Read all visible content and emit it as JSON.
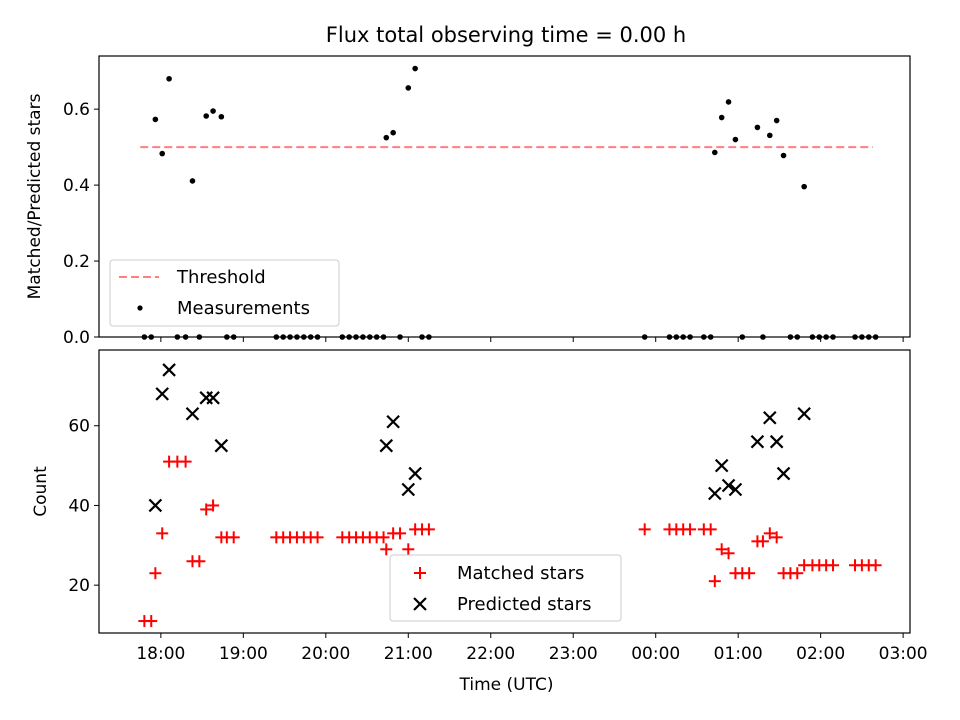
{
  "figure": {
    "title": "Flux total observing time = 0.00 h"
  },
  "chart_data": [
    {
      "type": "scatter",
      "panel": "top",
      "ylabel": "Matched/Predicted stars",
      "xlabel": "",
      "ylim": [
        0.0,
        0.74
      ],
      "y_ticks": [
        0.0,
        0.2,
        0.4,
        0.6
      ],
      "y_tick_labels": [
        "0.0",
        "0.2",
        "0.4",
        "0.6"
      ],
      "legend_position": "lower-left",
      "threshold": {
        "name": "Threshold",
        "value": 0.5,
        "color": "#ff7f7f",
        "x_start": "17:45",
        "x_end": "02:38"
      },
      "series": [
        {
          "name": "Measurements",
          "color": "#000000",
          "marker": "dot",
          "points": [
            [
              "17:48",
              0.0
            ],
            [
              "17:53",
              0.0
            ],
            [
              "17:56",
              0.573
            ],
            [
              "18:01",
              0.483
            ],
            [
              "18:06",
              0.68
            ],
            [
              "18:12",
              0.0
            ],
            [
              "18:18",
              0.0
            ],
            [
              "18:23",
              0.411
            ],
            [
              "18:28",
              0.0
            ],
            [
              "18:33",
              0.582
            ],
            [
              "18:38",
              0.595
            ],
            [
              "18:44",
              0.58
            ],
            [
              "18:48",
              0.0
            ],
            [
              "18:53",
              0.0
            ],
            [
              "19:24",
              0.0
            ],
            [
              "19:29",
              0.0
            ],
            [
              "19:34",
              0.0
            ],
            [
              "19:39",
              0.0
            ],
            [
              "19:44",
              0.0
            ],
            [
              "19:49",
              0.0
            ],
            [
              "19:54",
              0.0
            ],
            [
              "20:12",
              0.0
            ],
            [
              "20:17",
              0.0
            ],
            [
              "20:22",
              0.0
            ],
            [
              "20:27",
              0.0
            ],
            [
              "20:32",
              0.0
            ],
            [
              "20:37",
              0.0
            ],
            [
              "20:42",
              0.0
            ],
            [
              "20:44",
              0.525
            ],
            [
              "20:49",
              0.538
            ],
            [
              "20:54",
              0.0
            ],
            [
              "21:00",
              0.656
            ],
            [
              "21:05",
              0.707
            ],
            [
              "21:10",
              0.0
            ],
            [
              "21:15",
              0.0
            ],
            [
              "23:52",
              0.0
            ],
            [
              "00:10",
              0.0
            ],
            [
              "00:15",
              0.0
            ],
            [
              "00:20",
              0.0
            ],
            [
              "00:25",
              0.0
            ],
            [
              "00:35",
              0.0
            ],
            [
              "00:40",
              0.0
            ],
            [
              "00:43",
              0.486
            ],
            [
              "00:48",
              0.578
            ],
            [
              "00:53",
              0.619
            ],
            [
              "00:58",
              0.52
            ],
            [
              "01:03",
              0.0
            ],
            [
              "01:14",
              0.552
            ],
            [
              "01:18",
              0.0
            ],
            [
              "01:23",
              0.531
            ],
            [
              "01:28",
              0.57
            ],
            [
              "01:33",
              0.478
            ],
            [
              "01:38",
              0.0
            ],
            [
              "01:43",
              0.0
            ],
            [
              "01:48",
              0.396
            ],
            [
              "01:54",
              0.0
            ],
            [
              "01:59",
              0.0
            ],
            [
              "02:04",
              0.0
            ],
            [
              "02:09",
              0.0
            ],
            [
              "02:25",
              0.0
            ],
            [
              "02:30",
              0.0
            ],
            [
              "02:35",
              0.0
            ],
            [
              "02:40",
              0.0
            ]
          ]
        }
      ]
    },
    {
      "type": "scatter",
      "panel": "bottom",
      "ylabel": "Count",
      "xlabel": "Time (UTC)",
      "ylim": [
        8,
        79
      ],
      "y_ticks": [
        20,
        40,
        60
      ],
      "y_tick_labels": [
        "20",
        "40",
        "60"
      ],
      "x_range": [
        "17:15",
        "03:05"
      ],
      "x_ticks": [
        "18:00",
        "19:00",
        "20:00",
        "21:00",
        "22:00",
        "23:00",
        "00:00",
        "01:00",
        "02:00",
        "03:00"
      ],
      "legend_position": "lower-center",
      "series": [
        {
          "name": "Matched stars",
          "color": "#ff0000",
          "marker": "plus",
          "points": [
            [
              "17:48",
              11
            ],
            [
              "17:53",
              11
            ],
            [
              "17:56",
              23
            ],
            [
              "18:01",
              33
            ],
            [
              "18:06",
              51
            ],
            [
              "18:12",
              51
            ],
            [
              "18:18",
              51
            ],
            [
              "18:23",
              26
            ],
            [
              "18:28",
              26
            ],
            [
              "18:33",
              39
            ],
            [
              "18:38",
              40
            ],
            [
              "18:44",
              32
            ],
            [
              "18:48",
              32
            ],
            [
              "18:53",
              32
            ],
            [
              "19:24",
              32
            ],
            [
              "19:29",
              32
            ],
            [
              "19:34",
              32
            ],
            [
              "19:39",
              32
            ],
            [
              "19:44",
              32
            ],
            [
              "19:49",
              32
            ],
            [
              "19:54",
              32
            ],
            [
              "20:12",
              32
            ],
            [
              "20:17",
              32
            ],
            [
              "20:22",
              32
            ],
            [
              "20:27",
              32
            ],
            [
              "20:32",
              32
            ],
            [
              "20:37",
              32
            ],
            [
              "20:42",
              32
            ],
            [
              "20:44",
              29
            ],
            [
              "20:49",
              33
            ],
            [
              "20:54",
              33
            ],
            [
              "21:00",
              29
            ],
            [
              "21:05",
              34
            ],
            [
              "21:10",
              34
            ],
            [
              "21:15",
              34
            ],
            [
              "23:52",
              34
            ],
            [
              "00:10",
              34
            ],
            [
              "00:15",
              34
            ],
            [
              "00:20",
              34
            ],
            [
              "00:25",
              34
            ],
            [
              "00:35",
              34
            ],
            [
              "00:40",
              34
            ],
            [
              "00:43",
              21
            ],
            [
              "00:48",
              29
            ],
            [
              "00:53",
              28
            ],
            [
              "00:58",
              23
            ],
            [
              "01:03",
              23
            ],
            [
              "01:08",
              23
            ],
            [
              "01:14",
              31
            ],
            [
              "01:18",
              31
            ],
            [
              "01:23",
              33
            ],
            [
              "01:28",
              32
            ],
            [
              "01:33",
              23
            ],
            [
              "01:38",
              23
            ],
            [
              "01:43",
              23
            ],
            [
              "01:48",
              25
            ],
            [
              "01:54",
              25
            ],
            [
              "01:59",
              25
            ],
            [
              "02:04",
              25
            ],
            [
              "02:09",
              25
            ],
            [
              "02:25",
              25
            ],
            [
              "02:30",
              25
            ],
            [
              "02:35",
              25
            ],
            [
              "02:40",
              25
            ]
          ]
        },
        {
          "name": "Predicted stars",
          "color": "#000000",
          "marker": "cross",
          "points": [
            [
              "17:56",
              40
            ],
            [
              "18:01",
              68
            ],
            [
              "18:06",
              74
            ],
            [
              "18:23",
              63
            ],
            [
              "18:33",
              67
            ],
            [
              "18:38",
              67
            ],
            [
              "18:44",
              55
            ],
            [
              "20:44",
              55
            ],
            [
              "20:49",
              61
            ],
            [
              "21:00",
              44
            ],
            [
              "21:05",
              48
            ],
            [
              "00:43",
              43
            ],
            [
              "00:48",
              50
            ],
            [
              "00:53",
              45
            ],
            [
              "00:58",
              44
            ],
            [
              "01:14",
              56
            ],
            [
              "01:23",
              62
            ],
            [
              "01:28",
              56
            ],
            [
              "01:33",
              48
            ],
            [
              "01:48",
              63
            ]
          ]
        }
      ]
    }
  ]
}
